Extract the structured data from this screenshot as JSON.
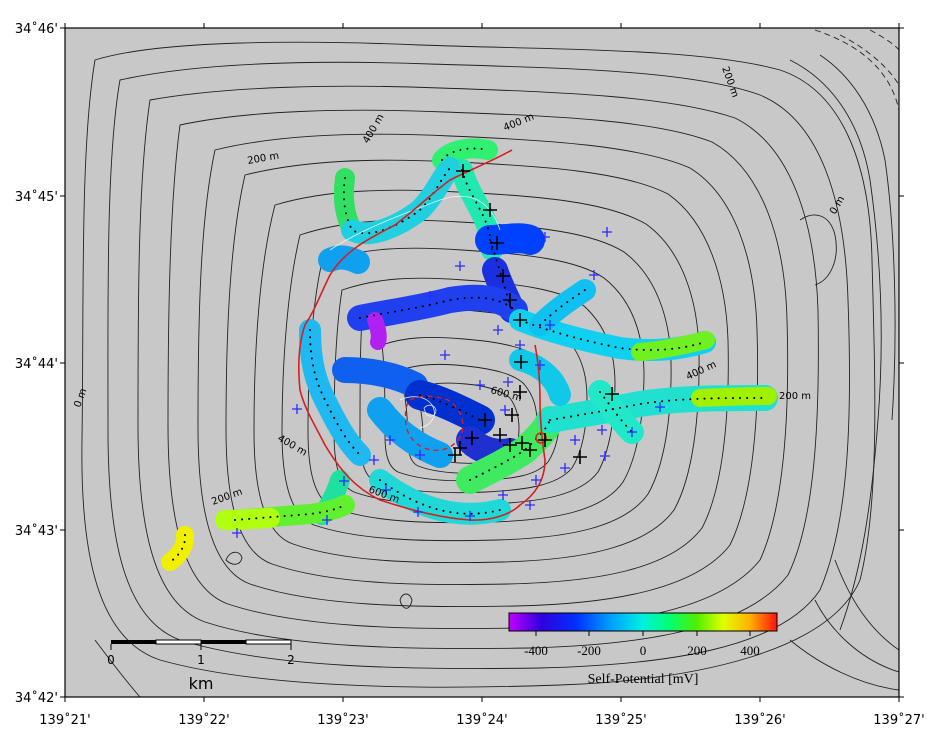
{
  "map": {
    "lat_labels": [
      "34˚46'",
      "34˚45'",
      "34˚44'",
      "34˚43'",
      "34˚42'"
    ],
    "lon_labels": [
      "139˚21'",
      "139˚22'",
      "139˚23'",
      "139˚24'",
      "139˚25'",
      "139˚26'",
      "139˚27'"
    ],
    "contour_labels": [
      "200 m",
      "400 m",
      "0 m",
      "200 m",
      "0 m",
      "400 m",
      "600 m",
      "600 m",
      "400 m",
      "200 m",
      "400 m",
      "200 m"
    ],
    "background_color": "#c8c8c8",
    "caldera_rim_color": "#d42020",
    "grid_marker_color": "#2a2aff"
  },
  "colorbar": {
    "tick_labels": [
      "-400",
      "-200",
      "0",
      "200",
      "400"
    ],
    "title": "Self-Potential [mV]",
    "range_mv": [
      -500,
      500
    ],
    "colors": [
      "#c000ff",
      "#0000d0",
      "#2a7cff",
      "#00e8e8",
      "#00ff80",
      "#40f000",
      "#e0ff00",
      "#ffe000",
      "#ff8000",
      "#ff1010"
    ]
  },
  "scalebar": {
    "tick_labels": [
      "0",
      "1",
      "2"
    ],
    "unit": "km"
  }
}
